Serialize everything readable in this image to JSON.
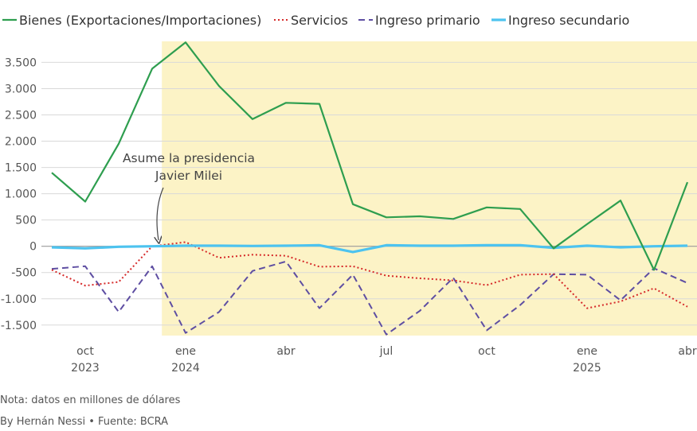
{
  "chart_data": {
    "type": "line",
    "x_months": [
      "2023-09",
      "2023-10",
      "2023-11",
      "2023-12",
      "2024-01",
      "2024-02",
      "2024-03",
      "2024-04",
      "2024-05",
      "2024-06",
      "2024-07",
      "2024-08",
      "2024-09",
      "2024-10",
      "2024-11",
      "2024-12",
      "2025-01",
      "2025-02",
      "2025-03",
      "2025-04"
    ],
    "x_ticks": [
      {
        "month": "2023-10",
        "label": "oct",
        "year": "2023"
      },
      {
        "month": "2024-01",
        "label": "ene",
        "year": "2024"
      },
      {
        "month": "2024-04",
        "label": "abr",
        "year": ""
      },
      {
        "month": "2024-07",
        "label": "jul",
        "year": ""
      },
      {
        "month": "2024-10",
        "label": "oct",
        "year": ""
      },
      {
        "month": "2025-01",
        "label": "ene",
        "year": "2025"
      },
      {
        "month": "2025-04",
        "label": "abr",
        "year": ""
      }
    ],
    "y_ticks": [
      {
        "value": 3500,
        "label": "3.500"
      },
      {
        "value": 3000,
        "label": "3.000"
      },
      {
        "value": 2500,
        "label": "2.500"
      },
      {
        "value": 2000,
        "label": "2.000"
      },
      {
        "value": 1500,
        "label": "1.500"
      },
      {
        "value": 1000,
        "label": "1.000"
      },
      {
        "value": 500,
        "label": "500"
      },
      {
        "value": 0,
        "label": "0"
      },
      {
        "value": -500,
        "label": "-500"
      },
      {
        "value": -1000,
        "label": "-1.000"
      },
      {
        "value": -1500,
        "label": "-1.500"
      }
    ],
    "ylim": [
      -1700,
      3900
    ],
    "shaded_region": {
      "from": "2023-12-10",
      "to": "2025-04-30",
      "color": "#fcf3c6"
    },
    "grid": true,
    "legend_position": "top",
    "series": [
      {
        "name": "Bienes (Exportaciones/Importaciones)",
        "color": "#2e9e4f",
        "style": "solid",
        "values": [
          1400,
          850,
          1950,
          3380,
          3880,
          3050,
          2420,
          2730,
          2710,
          800,
          550,
          570,
          520,
          740,
          710,
          -40,
          420,
          870,
          -450,
          1220
        ]
      },
      {
        "name": "Servicios",
        "color": "#d62a2a",
        "style": "dotted",
        "values": [
          -450,
          -750,
          -680,
          0,
          80,
          -220,
          -160,
          -180,
          -390,
          -380,
          -560,
          -610,
          -650,
          -740,
          -540,
          -530,
          -1180,
          -1050,
          -800,
          -1150
        ]
      },
      {
        "name": "Ingreso primario",
        "color": "#5e4ea2",
        "style": "dashed",
        "values": [
          -430,
          -380,
          -1250,
          -380,
          -1650,
          -1250,
          -470,
          -290,
          -1180,
          -540,
          -1680,
          -1230,
          -600,
          -1600,
          -1120,
          -530,
          -540,
          -1030,
          -420,
          -700
        ]
      },
      {
        "name": "Ingreso secundario",
        "color": "#4dc3ef",
        "style": "solid-thick",
        "values": [
          -20,
          -40,
          -10,
          0,
          10,
          10,
          5,
          10,
          20,
          -110,
          20,
          10,
          10,
          20,
          20,
          -30,
          10,
          -20,
          0,
          10
        ]
      }
    ],
    "annotation": {
      "lines": [
        "Asume la presidencia",
        "Javier Milei"
      ],
      "target_month": "2023-12"
    }
  },
  "footer": {
    "note": "Nota: datos en millones de dólares",
    "byline": "By Hernán Nessi • Fuente: BCRA"
  }
}
